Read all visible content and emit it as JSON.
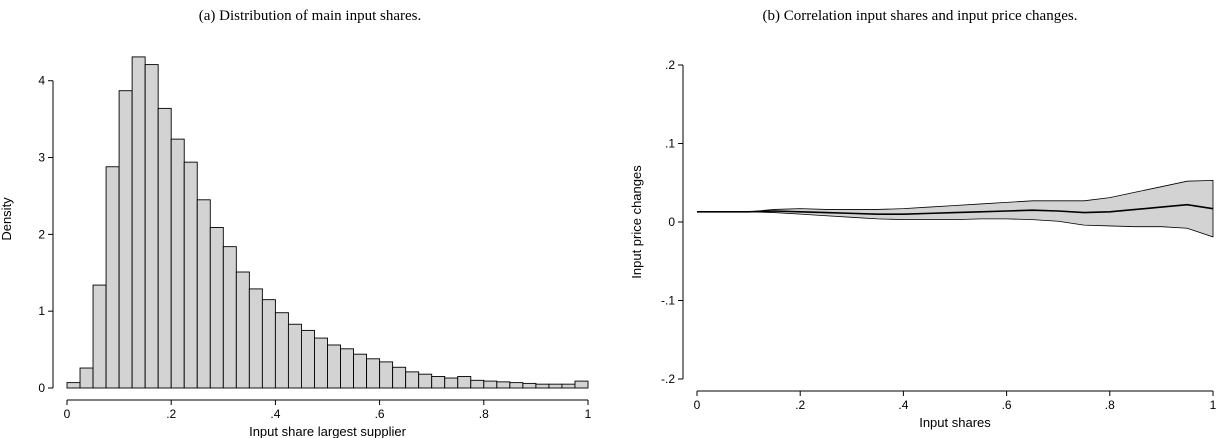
{
  "chart_data": [
    {
      "type": "bar",
      "subtype": "histogram",
      "title": "(a) Distribution of main input shares.",
      "xlabel": "Input share largest supplier",
      "ylabel": "Density",
      "xlim": [
        0,
        1
      ],
      "ylim": [
        0,
        4.4
      ],
      "xticks": [
        0,
        0.2,
        0.4,
        0.6,
        0.8,
        1
      ],
      "xtick_labels": [
        "0",
        ".2",
        ".4",
        ".6",
        ".8",
        "1"
      ],
      "yticks": [
        0,
        1,
        2,
        3,
        4
      ],
      "ytick_labels": [
        "0",
        "1",
        "2",
        "3",
        "4"
      ],
      "bin_width": 0.025,
      "bin_starts": [
        0,
        0.025,
        0.05,
        0.075,
        0.1,
        0.125,
        0.15,
        0.175,
        0.2,
        0.225,
        0.25,
        0.275,
        0.3,
        0.325,
        0.35,
        0.375,
        0.4,
        0.425,
        0.45,
        0.475,
        0.5,
        0.525,
        0.55,
        0.575,
        0.6,
        0.625,
        0.65,
        0.675,
        0.7,
        0.725,
        0.75,
        0.775,
        0.8,
        0.825,
        0.85,
        0.875,
        0.9,
        0.925,
        0.95,
        0.975
      ],
      "values": [
        0.07,
        0.26,
        1.34,
        2.88,
        3.87,
        4.31,
        4.21,
        3.64,
        3.24,
        2.94,
        2.45,
        2.09,
        1.84,
        1.51,
        1.29,
        1.15,
        0.98,
        0.83,
        0.75,
        0.65,
        0.56,
        0.51,
        0.44,
        0.38,
        0.34,
        0.27,
        0.21,
        0.18,
        0.15,
        0.13,
        0.15,
        0.1,
        0.09,
        0.08,
        0.07,
        0.06,
        0.05,
        0.05,
        0.05,
        0.09
      ],
      "bar_color": "#d3d3d3",
      "edge_color": "#000000",
      "grid": false
    },
    {
      "type": "line",
      "subtype": "line-with-confidence-band",
      "title": "(b) Correlation input shares and input price changes.",
      "xlabel": "Input shares",
      "ylabel": "Input price changes",
      "xlim": [
        0,
        1
      ],
      "ylim": [
        -0.2,
        0.2
      ],
      "xticks": [
        0,
        0.2,
        0.4,
        0.6,
        0.8,
        1
      ],
      "xtick_labels": [
        "0",
        ".2",
        ".4",
        ".6",
        ".8",
        "1"
      ],
      "yticks": [
        -0.2,
        -0.1,
        0,
        0.1,
        0.2
      ],
      "ytick_labels": [
        "-.2",
        "-.1",
        "0",
        ".1",
        ".2"
      ],
      "x": [
        0,
        0.05,
        0.1,
        0.15,
        0.2,
        0.25,
        0.3,
        0.35,
        0.4,
        0.45,
        0.5,
        0.55,
        0.6,
        0.65,
        0.7,
        0.75,
        0.8,
        0.85,
        0.9,
        0.95,
        1.0
      ],
      "series": [
        {
          "values": [
            0.013,
            0.013,
            0.013,
            0.014,
            0.013,
            0.012,
            0.011,
            0.01,
            0.01,
            0.011,
            0.012,
            0.013,
            0.014,
            0.015,
            0.014,
            0.012,
            0.013,
            0.016,
            0.019,
            0.022,
            0.017
          ],
          "lower": [
            0.013,
            0.013,
            0.013,
            0.012,
            0.01,
            0.008,
            0.006,
            0.004,
            0.003,
            0.003,
            0.003,
            0.004,
            0.004,
            0.003,
            0.001,
            -0.004,
            -0.005,
            -0.006,
            -0.006,
            -0.008,
            -0.019
          ],
          "upper": [
            0.013,
            0.013,
            0.013,
            0.016,
            0.017,
            0.016,
            0.016,
            0.016,
            0.017,
            0.019,
            0.021,
            0.023,
            0.025,
            0.027,
            0.027,
            0.027,
            0.031,
            0.038,
            0.045,
            0.052,
            0.053
          ]
        }
      ],
      "line_color": "#000000",
      "band_color": "#d3d3d3",
      "grid": false
    }
  ]
}
